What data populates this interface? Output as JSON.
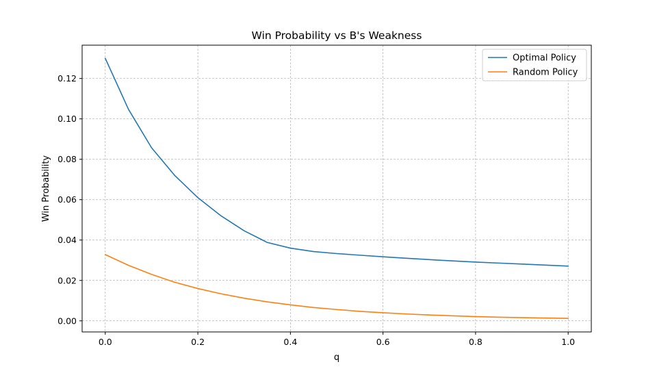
{
  "chart_data": {
    "type": "line",
    "title": "Win Probability vs B's Weakness",
    "xlabel": "q",
    "ylabel": "Win Probability",
    "xlim": [
      -0.05,
      1.05
    ],
    "ylim": [
      -0.0055,
      0.1365
    ],
    "xticks": [
      0.0,
      0.2,
      0.4,
      0.6,
      0.8,
      1.0
    ],
    "xtick_labels": [
      "0.0",
      "0.2",
      "0.4",
      "0.6",
      "0.8",
      "1.0"
    ],
    "yticks": [
      0.0,
      0.02,
      0.04,
      0.06,
      0.08,
      0.1,
      0.12
    ],
    "ytick_labels": [
      "0.00",
      "0.02",
      "0.04",
      "0.06",
      "0.08",
      "0.10",
      "0.12"
    ],
    "grid": true,
    "legend_position": "top-right",
    "x": [
      0.0,
      0.05,
      0.1,
      0.15,
      0.2,
      0.25,
      0.3,
      0.35,
      0.4,
      0.45,
      0.5,
      0.55,
      0.6,
      0.65,
      0.7,
      0.75,
      0.8,
      0.85,
      0.9,
      0.95,
      1.0
    ],
    "series": [
      {
        "name": "Optimal Policy",
        "color": "#1f77b4",
        "values": [
          0.13,
          0.1048,
          0.0857,
          0.072,
          0.061,
          0.052,
          0.0446,
          0.0388,
          0.036,
          0.0343,
          0.0333,
          0.0325,
          0.0317,
          0.031,
          0.0303,
          0.0297,
          0.0291,
          0.0286,
          0.0281,
          0.0276,
          0.0271
        ]
      },
      {
        "name": "Random Policy",
        "color": "#ff7f0e",
        "values": [
          0.0328,
          0.0275,
          0.023,
          0.0191,
          0.016,
          0.0134,
          0.0112,
          0.0094,
          0.0079,
          0.0066,
          0.0056,
          0.0047,
          0.004,
          0.0034,
          0.0029,
          0.0025,
          0.0021,
          0.0018,
          0.0016,
          0.0014,
          0.0012
        ]
      }
    ]
  }
}
